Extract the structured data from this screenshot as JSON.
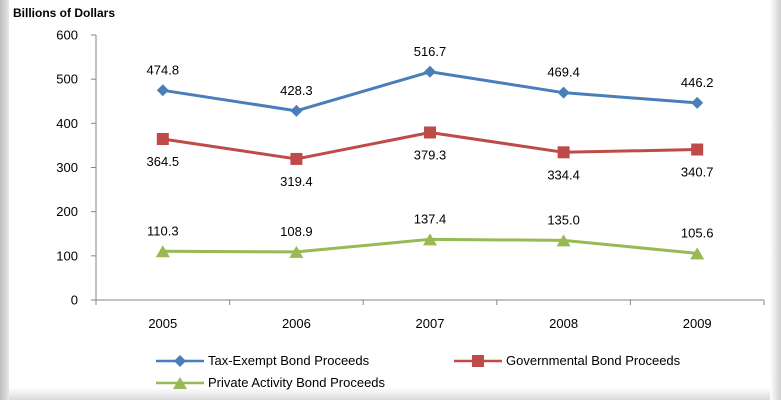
{
  "chart_data": {
    "type": "line",
    "ylabel": "Billions of Dollars",
    "categories": [
      "2005",
      "2006",
      "2007",
      "2008",
      "2009"
    ],
    "ylim": [
      0,
      600
    ],
    "yticks": [
      "0",
      "100",
      "200",
      "300",
      "400",
      "500",
      "600"
    ],
    "ytick_values": [
      0,
      100,
      200,
      300,
      400,
      500,
      600
    ],
    "grid": false,
    "legend_position": "bottom",
    "series": [
      {
        "name": "Tax-Exempt Bond Proceeds",
        "values": [
          474.8,
          428.3,
          516.7,
          469.4,
          446.2
        ],
        "labels": [
          "474.8",
          "428.3",
          "516.7",
          "469.4",
          "446.2"
        ],
        "color": "#4a7ebb",
        "marker": "diamond",
        "label_side": "above"
      },
      {
        "name": "Governmental Bond Proceeds",
        "values": [
          364.5,
          319.4,
          379.3,
          334.4,
          340.7
        ],
        "labels": [
          "364.5",
          "319.4",
          "379.3",
          "334.4",
          "340.7"
        ],
        "color": "#be4b48",
        "marker": "square",
        "label_side": "below"
      },
      {
        "name": "Private Activity Bond Proceeds",
        "values": [
          110.3,
          108.9,
          137.4,
          135.0,
          105.6
        ],
        "labels": [
          "110.3",
          "108.9",
          "137.4",
          "135.0",
          "105.6"
        ],
        "color": "#98b954",
        "marker": "triangle",
        "label_side": "above"
      }
    ]
  }
}
